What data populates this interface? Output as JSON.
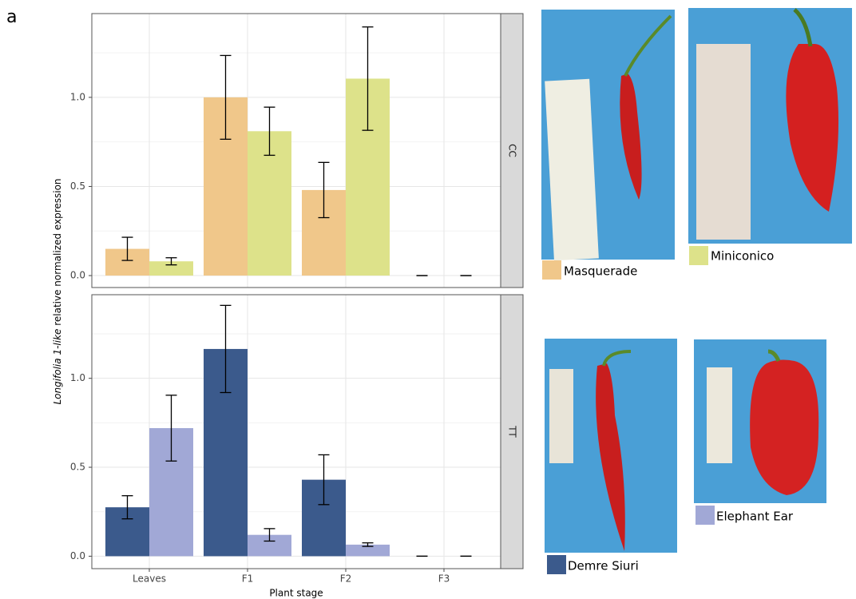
{
  "panel_label": "a",
  "axis_labels": {
    "x": "Plant stage",
    "y_italic": "Longifolia 1-like",
    "y": "relative normalized expression"
  },
  "chart_data": [
    {
      "type": "bar",
      "facet": "CC",
      "series": [
        {
          "name": "Masquerade",
          "color": "#f0c78a",
          "values": [
            0.15,
            1.0,
            0.48,
            0.0
          ],
          "errors": [
            0.065,
            0.235,
            0.155,
            0.0
          ]
        },
        {
          "name": "Miniconico",
          "color": "#dde28a",
          "values": [
            0.08,
            0.81,
            1.105,
            0.0
          ],
          "errors": [
            0.02,
            0.135,
            0.29,
            0.0
          ]
        }
      ],
      "ylim": [
        -0.067,
        1.47
      ],
      "yticks": [
        {
          "value": 0,
          "label": "0.0"
        },
        {
          "value": 0.5,
          "label": "0.5"
        },
        {
          "value": 1,
          "label": "1.0"
        }
      ],
      "grid": true
    },
    {
      "type": "bar",
      "facet": "TT",
      "categories": [
        "Leaves",
        "F1",
        "F2",
        "F3"
      ],
      "series": [
        {
          "name": "Demre Siuri",
          "color": "#3b5a8c",
          "values": [
            0.275,
            1.165,
            0.43,
            0.0
          ],
          "errors": [
            0.065,
            0.245,
            0.14,
            0.0
          ]
        },
        {
          "name": "Elephant Ear",
          "color": "#a1a8d6",
          "values": [
            0.72,
            0.12,
            0.065,
            0.0
          ],
          "errors": [
            0.185,
            0.035,
            0.01,
            0.0
          ]
        }
      ],
      "ylim": [
        -0.07,
        1.47
      ],
      "yticks": [
        {
          "value": 0,
          "label": "0.0"
        },
        {
          "value": 0.5,
          "label": "0.5"
        },
        {
          "value": 1,
          "label": "1.0"
        }
      ],
      "grid": true
    }
  ]
}
